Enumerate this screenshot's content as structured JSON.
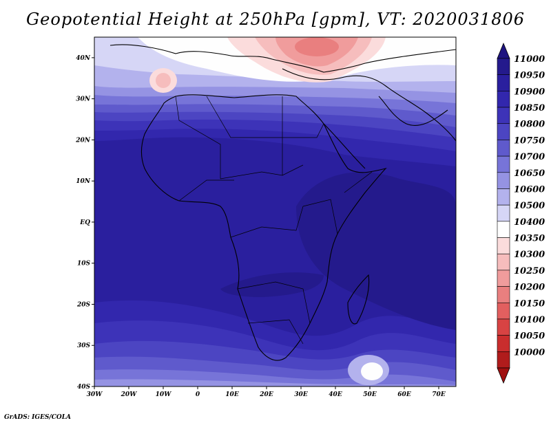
{
  "title": "Geopotential Height at 250hPa [gpm], VT: 2020031806",
  "credit": "GrADS: IGES/COLA",
  "map": {
    "lon_range": [
      -30,
      75
    ],
    "lat_range": [
      -40,
      45
    ],
    "x_ticks": [
      {
        "lon": -30,
        "label": "30W"
      },
      {
        "lon": -20,
        "label": "20W"
      },
      {
        "lon": -10,
        "label": "10W"
      },
      {
        "lon": 0,
        "label": "0"
      },
      {
        "lon": 10,
        "label": "10E"
      },
      {
        "lon": 20,
        "label": "20E"
      },
      {
        "lon": 30,
        "label": "30E"
      },
      {
        "lon": 40,
        "label": "40E"
      },
      {
        "lon": 50,
        "label": "50E"
      },
      {
        "lon": 60,
        "label": "60E"
      },
      {
        "lon": 70,
        "label": "70E"
      }
    ],
    "y_ticks": [
      {
        "lat": 40,
        "label": "40N"
      },
      {
        "lat": 30,
        "label": "30N"
      },
      {
        "lat": 20,
        "label": "20N"
      },
      {
        "lat": 10,
        "label": "10N"
      },
      {
        "lat": 0,
        "label": "EQ"
      },
      {
        "lat": -10,
        "label": "10S"
      },
      {
        "lat": -20,
        "label": "20S"
      },
      {
        "lat": -30,
        "label": "30S"
      },
      {
        "lat": -40,
        "label": "40S"
      }
    ]
  },
  "colorbar": {
    "levels": [
      {
        "label": "11000",
        "color": "#241a8c"
      },
      {
        "label": "10950",
        "color": "#2a1f9e"
      },
      {
        "label": "10900",
        "color": "#3227ad"
      },
      {
        "label": "10850",
        "color": "#3d33b8"
      },
      {
        "label": "10800",
        "color": "#4c45c2"
      },
      {
        "label": "10750",
        "color": "#5f5acc"
      },
      {
        "label": "10700",
        "color": "#7774d8"
      },
      {
        "label": "10650",
        "color": "#9593e3"
      },
      {
        "label": "10600",
        "color": "#b3b2ed"
      },
      {
        "label": "10500",
        "color": "#d6d6f6"
      },
      {
        "label": "10400",
        "color": "#fefefe"
      },
      {
        "label": "10350",
        "color": "#fbdcdc"
      },
      {
        "label": "10300",
        "color": "#f6bdbd"
      },
      {
        "label": "10250",
        "color": "#f09c9c"
      },
      {
        "label": "10200",
        "color": "#e97f7f"
      },
      {
        "label": "10150",
        "color": "#e25f5f"
      },
      {
        "label": "10100",
        "color": "#d84343"
      },
      {
        "label": "10050",
        "color": "#c92d2d"
      },
      {
        "label": "10000",
        "color": "#b01c1c"
      }
    ],
    "top_arrow_color": "#1e1480",
    "bottom_arrow_color": "#a01010"
  }
}
